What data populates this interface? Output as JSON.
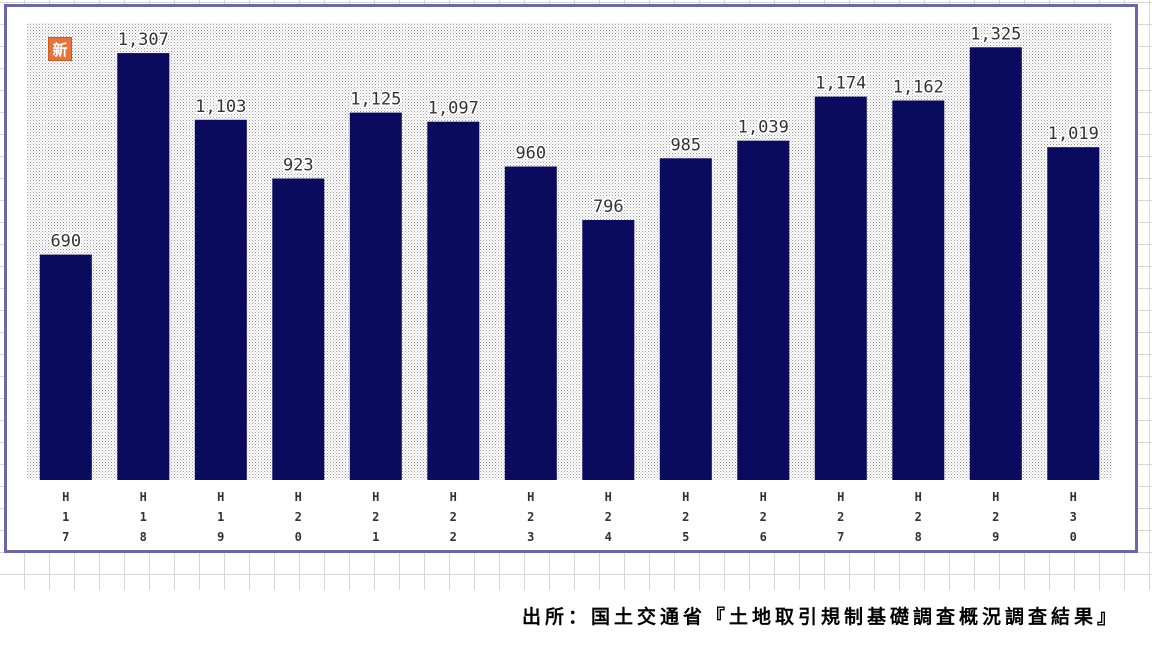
{
  "badge": {
    "label": "新"
  },
  "source": {
    "text": "出所：国土交通省『土地取引規制基礎調査概況調査結果』"
  },
  "colors": {
    "bar": "#0a0a5e",
    "frame": "#6a68a6",
    "plot_dots": "#9a9a9a",
    "badge": "#e8733a"
  },
  "chart_data": {
    "type": "bar",
    "title": "",
    "xlabel": "",
    "ylabel": "",
    "categories": [
      "H17",
      "H18",
      "H19",
      "H20",
      "H21",
      "H22",
      "H23",
      "H24",
      "H25",
      "H26",
      "H27",
      "H28",
      "H29",
      "H30"
    ],
    "values": [
      690,
      1307,
      1103,
      923,
      1125,
      1097,
      960,
      796,
      985,
      1039,
      1174,
      1162,
      1325,
      1019
    ],
    "value_labels": [
      "690",
      "1,307",
      "1,103",
      "923",
      "1,125",
      "1,097",
      "960",
      "796",
      "985",
      "1,039",
      "1,174",
      "1,162",
      "1,325",
      "1,019"
    ],
    "ylim": [
      0,
      1400
    ],
    "grid": false,
    "legend": "none"
  }
}
